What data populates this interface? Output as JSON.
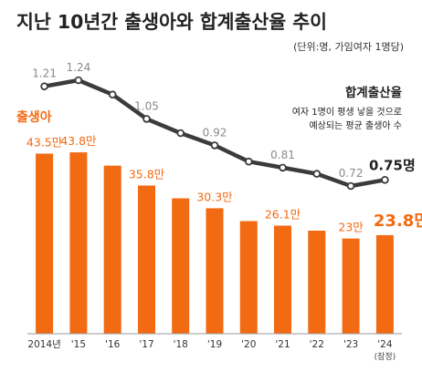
{
  "title": "지난 10년간 출생아와 합계출산율 추이",
  "unit_note": "(단위:명, 가임여자 1명당)",
  "colors": {
    "bar": "#f26a12",
    "line": "#3b3b3b",
    "label_orange": "#f26a12",
    "label_gray": "#8a8a8a",
    "dark": "#222222",
    "axis": "#9a9a9a"
  },
  "chart_data": [
    {
      "type": "bar",
      "series_label": "출생아",
      "categories": [
        "2014년",
        "'15",
        "'16",
        "'17",
        "'18",
        "'19",
        "'20",
        "'21",
        "'22",
        "'23",
        "'24"
      ],
      "category_sublabel": {
        "index": 10,
        "text": "(잠정)"
      },
      "values": [
        43.5,
        43.8,
        40.6,
        35.8,
        32.7,
        30.3,
        27.2,
        26.1,
        24.9,
        23.0,
        23.8
      ],
      "labels": [
        "43.5만",
        "43.8만",
        "",
        "35.8만",
        "",
        "30.3만",
        "",
        "26.1만",
        "",
        "23만",
        "23.8만"
      ],
      "ylim": [
        0,
        50
      ]
    },
    {
      "type": "line",
      "series_label": "합계출산율",
      "description": "여자 1명이 평생 낳을 것으로 예상되는 평균 출생아 수",
      "categories": [
        "2014년",
        "'15",
        "'16",
        "'17",
        "'18",
        "'19",
        "'20",
        "'21",
        "'22",
        "'23",
        "'24"
      ],
      "values": [
        1.21,
        1.24,
        1.17,
        1.05,
        0.98,
        0.92,
        0.84,
        0.81,
        0.78,
        0.72,
        0.75
      ],
      "labels": [
        "1.21",
        "1.24",
        "",
        "1.05",
        "",
        "0.92",
        "",
        "0.81",
        "",
        "0.72",
        "0.75명"
      ],
      "ylim": [
        0.55,
        1.4
      ]
    }
  ]
}
